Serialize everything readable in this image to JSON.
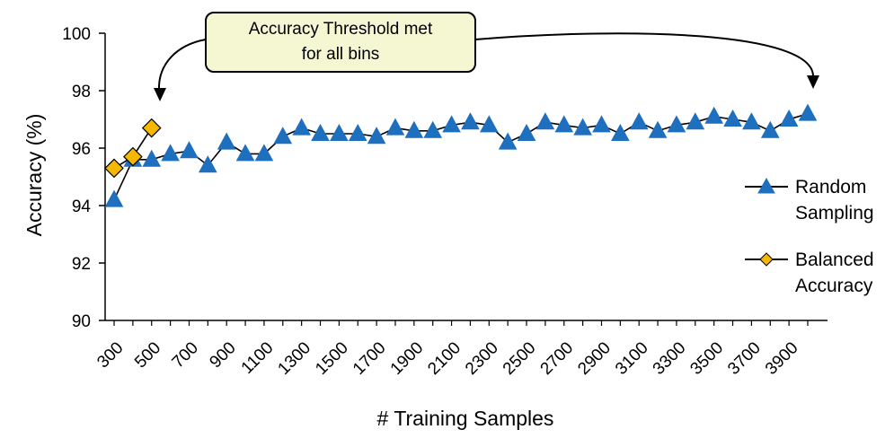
{
  "chart_data": {
    "type": "line",
    "xlabel": "# Training Samples",
    "ylabel": "Accuracy (%)",
    "ylim": [
      90,
      100
    ],
    "yticks": [
      "90",
      "92",
      "94",
      "96",
      "98",
      "100"
    ],
    "x_tick_labels": [
      "300",
      "500",
      "700",
      "900",
      "1100",
      "1300",
      "1500",
      "1700",
      "1900",
      "2100",
      "2300",
      "2500",
      "2700",
      "2900",
      "3100",
      "3300",
      "3500",
      "3700",
      "3900"
    ],
    "grid": false,
    "legend_position": "right",
    "series": [
      {
        "name": "Random Sampling",
        "marker": "triangle",
        "color": "#1f6fbf",
        "x": [
          300,
          400,
          500,
          600,
          700,
          800,
          900,
          1000,
          1100,
          1200,
          1300,
          1400,
          1500,
          1600,
          1700,
          1800,
          1900,
          2000,
          2100,
          2200,
          2300,
          2400,
          2500,
          2600,
          2700,
          2800,
          2900,
          3000,
          3100,
          3200,
          3300,
          3400,
          3500,
          3600,
          3700,
          3800,
          3900,
          4000
        ],
        "values": [
          94.2,
          95.6,
          95.6,
          95.8,
          95.9,
          95.4,
          96.2,
          95.8,
          95.8,
          96.4,
          96.7,
          96.5,
          96.5,
          96.5,
          96.4,
          96.7,
          96.6,
          96.6,
          96.8,
          96.9,
          96.8,
          96.2,
          96.5,
          96.9,
          96.8,
          96.7,
          96.8,
          96.5,
          96.9,
          96.6,
          96.8,
          96.9,
          97.1,
          97.0,
          96.9,
          96.6,
          97.0,
          97.2
        ]
      },
      {
        "name": "Balanced Accuracy",
        "marker": "diamond",
        "color": "#f5b800",
        "x": [
          300,
          400,
          500
        ],
        "values": [
          95.3,
          95.7,
          96.7
        ]
      }
    ],
    "legend": [
      {
        "lines": [
          "Random",
          "Sampling"
        ]
      },
      {
        "lines": [
          "Balanced",
          "Accuracy"
        ]
      }
    ],
    "annotation": {
      "lines": [
        "Accuracy Threshold met",
        "for all bins"
      ],
      "fill": "#f4f7d2",
      "arrow_targets_x": [
        500,
        4000
      ]
    }
  }
}
